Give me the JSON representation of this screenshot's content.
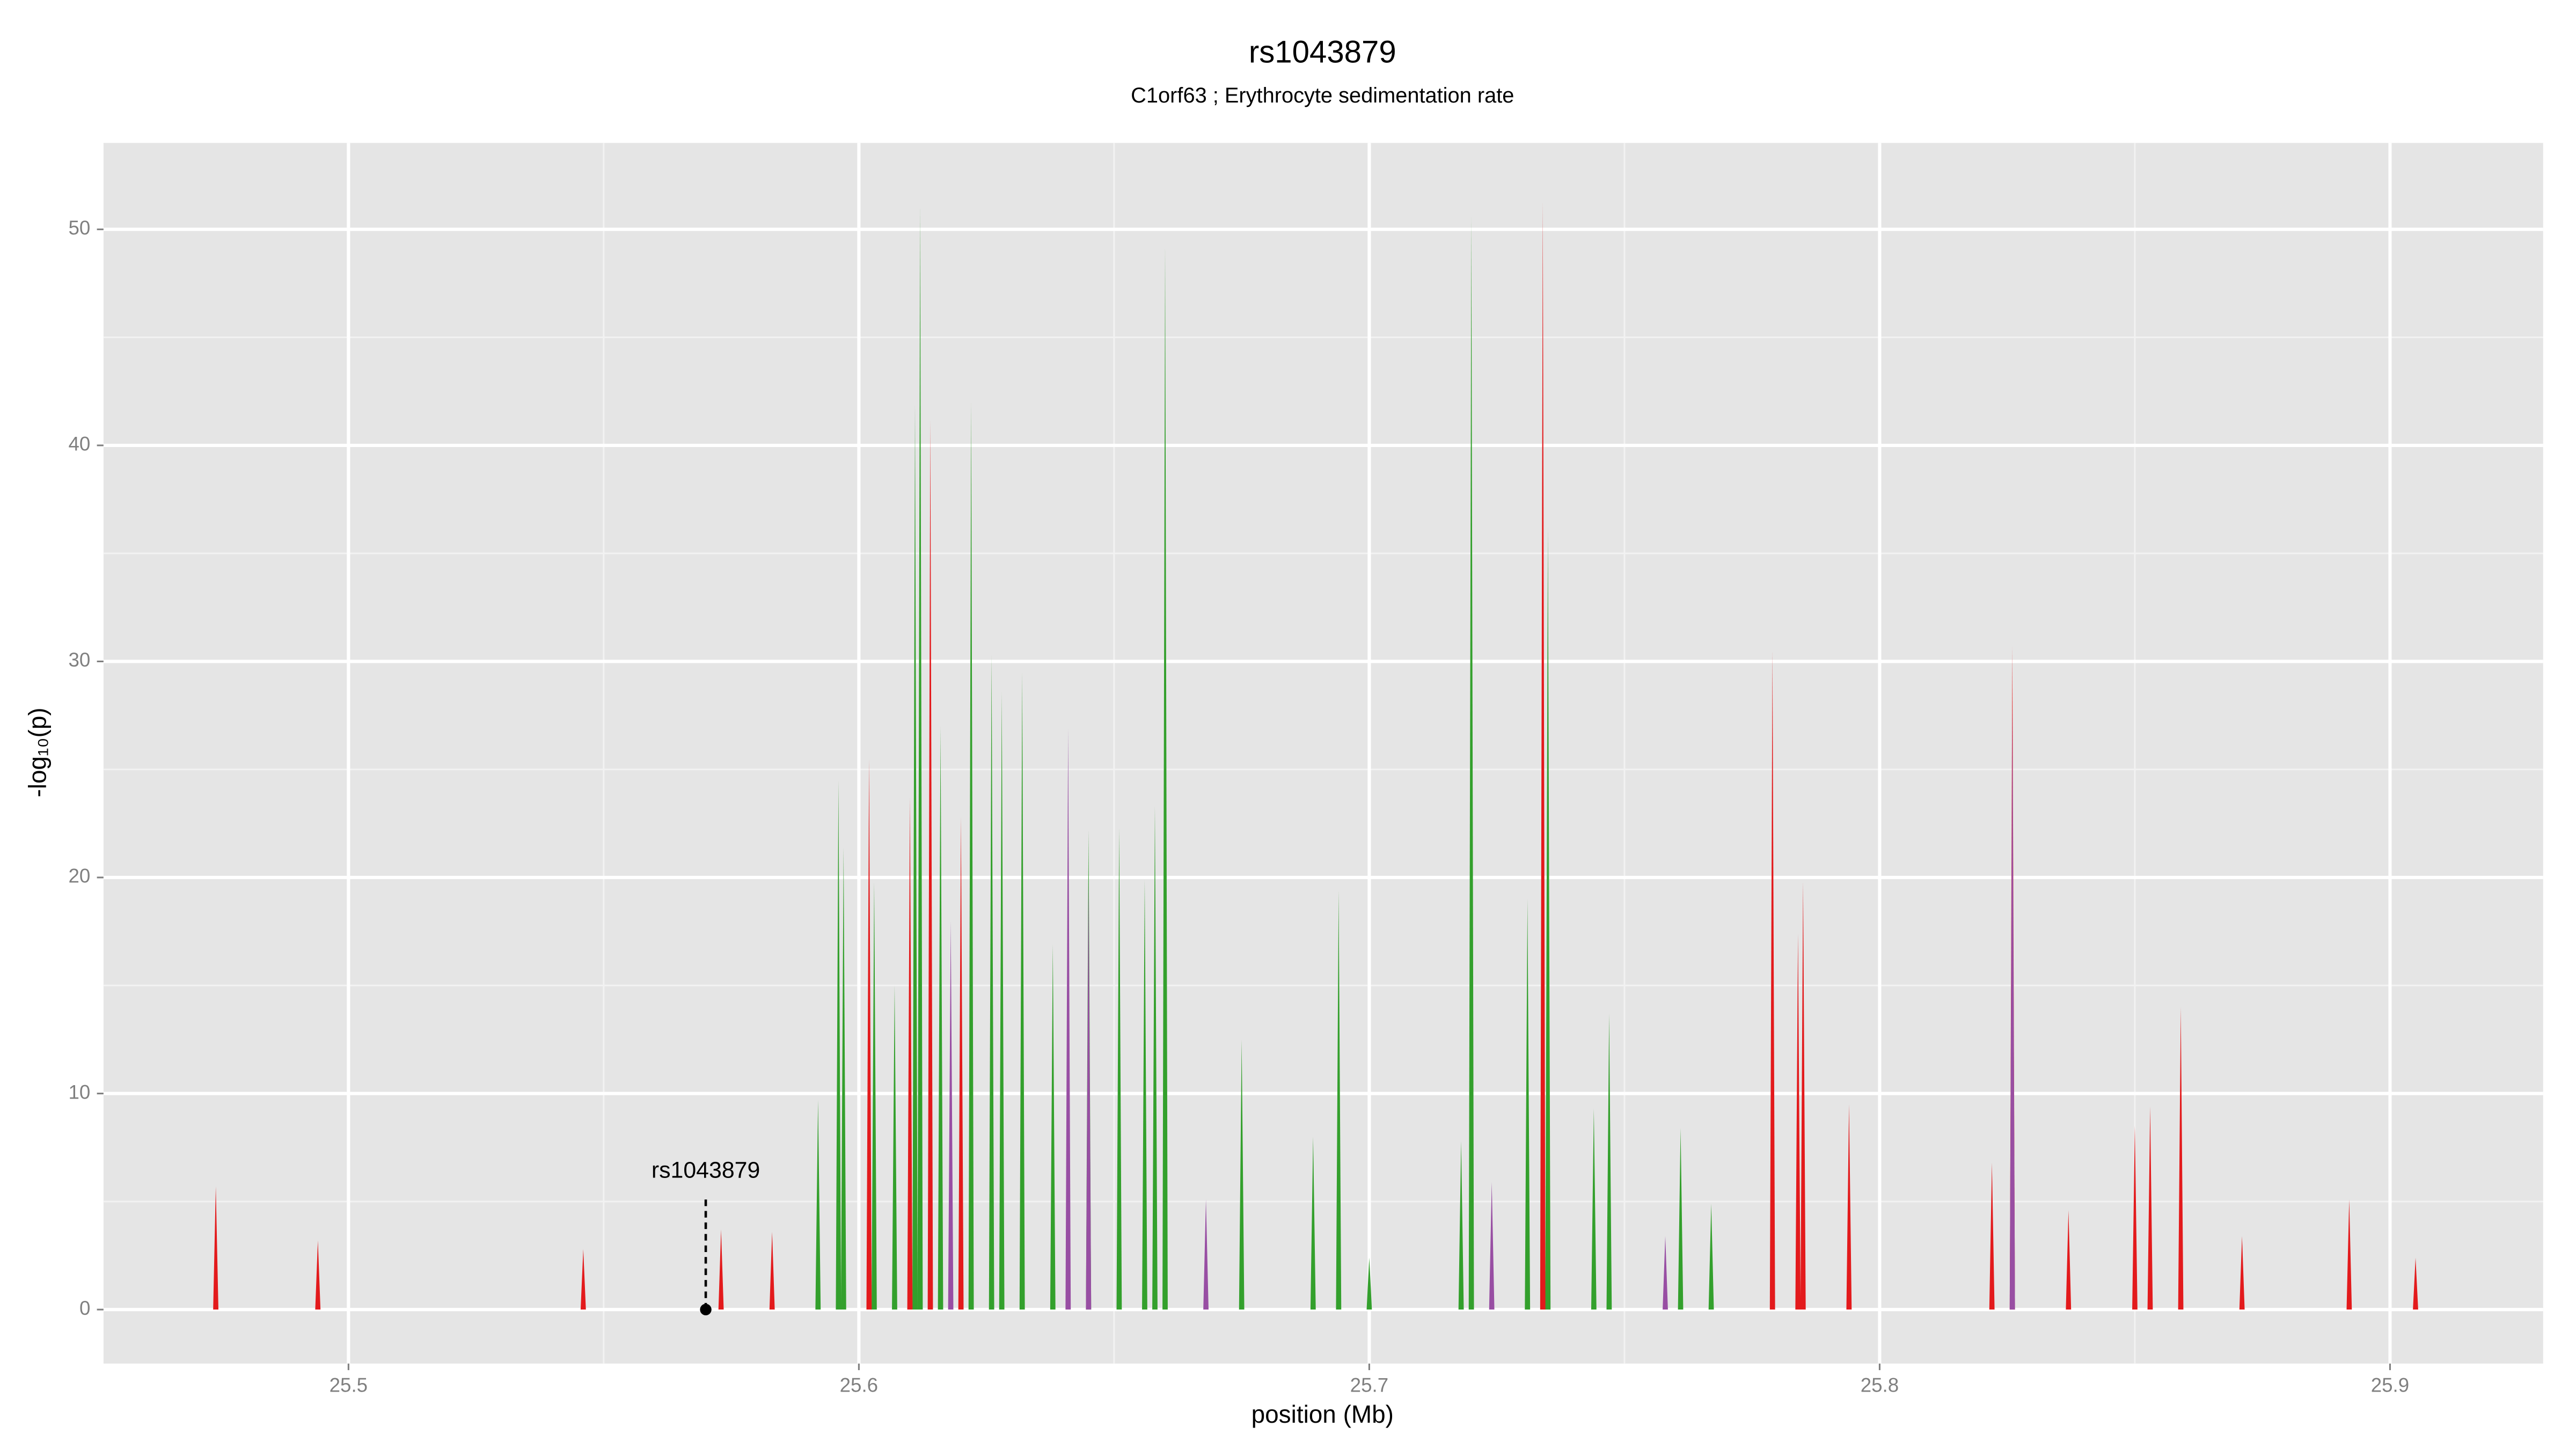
{
  "chart_data": {
    "type": "area",
    "title": "rs1043879",
    "subtitle": "C1orf63 ; Erythrocyte sedimentation rate",
    "x_label": "position (Mb)",
    "y_label": "-log₁₀(p)",
    "xlim": [
      25.452,
      25.93
    ],
    "ylim": [
      -2.5,
      54
    ],
    "xticks": [
      25.5,
      25.6,
      25.7,
      25.8,
      25.9
    ],
    "yticks": [
      0,
      10,
      20,
      30,
      40,
      50
    ],
    "x_minor_ticks": [
      25.55,
      25.65,
      25.75,
      25.85
    ],
    "y_minor_ticks": [
      5,
      15,
      25,
      35,
      45
    ],
    "grid": true,
    "series": [
      {
        "name": "green",
        "color": "#33a02c",
        "x": [
          25.592,
          25.596,
          25.597,
          25.603,
          25.607,
          25.611,
          25.612,
          25.616,
          25.622,
          25.626,
          25.628,
          25.632,
          25.638,
          25.645,
          25.651,
          25.656,
          25.658,
          25.66,
          25.675,
          25.689,
          25.694,
          25.7,
          25.718,
          25.72,
          25.731,
          25.735,
          25.744,
          25.747,
          25.761,
          25.767
        ],
        "values": [
          9.7,
          24.5,
          21.4,
          19.8,
          15,
          41.9,
          51.1,
          27,
          42,
          30.3,
          28.6,
          29.5,
          16.9,
          22.2,
          22.3,
          19.9,
          23.3,
          49.2,
          12.5,
          8,
          19.4,
          2.4,
          7.8,
          50.6,
          19,
          36.2,
          9.3,
          13.7,
          8.4,
          4.9
        ]
      },
      {
        "name": "red",
        "color": "#e31a1c",
        "x": [
          25.474,
          25.494,
          25.546,
          25.573,
          25.583,
          25.602,
          25.61,
          25.614,
          25.62,
          25.734,
          25.779,
          25.784,
          25.785,
          25.794,
          25.822,
          25.826,
          25.837,
          25.85,
          25.853,
          25.859,
          25.871,
          25.892,
          25.905
        ],
        "values": [
          5.7,
          3.2,
          2.8,
          3.7,
          3.6,
          25.5,
          23.7,
          41.2,
          22.8,
          51.3,
          30.5,
          17.4,
          19.8,
          9.5,
          6.8,
          30.7,
          4.6,
          8.5,
          9.4,
          14,
          3.4,
          5.1,
          2.4
        ]
      },
      {
        "name": "purple",
        "color": "#984ea3",
        "x": [
          25.618,
          25.641,
          25.645,
          25.668,
          25.724,
          25.758,
          25.826
        ],
        "values": [
          18,
          26.9,
          19.8,
          5.1,
          5.9,
          3.4,
          27.9
        ]
      }
    ],
    "annotation": {
      "text": "rs1043879",
      "x": 25.57,
      "y": 0
    }
  }
}
